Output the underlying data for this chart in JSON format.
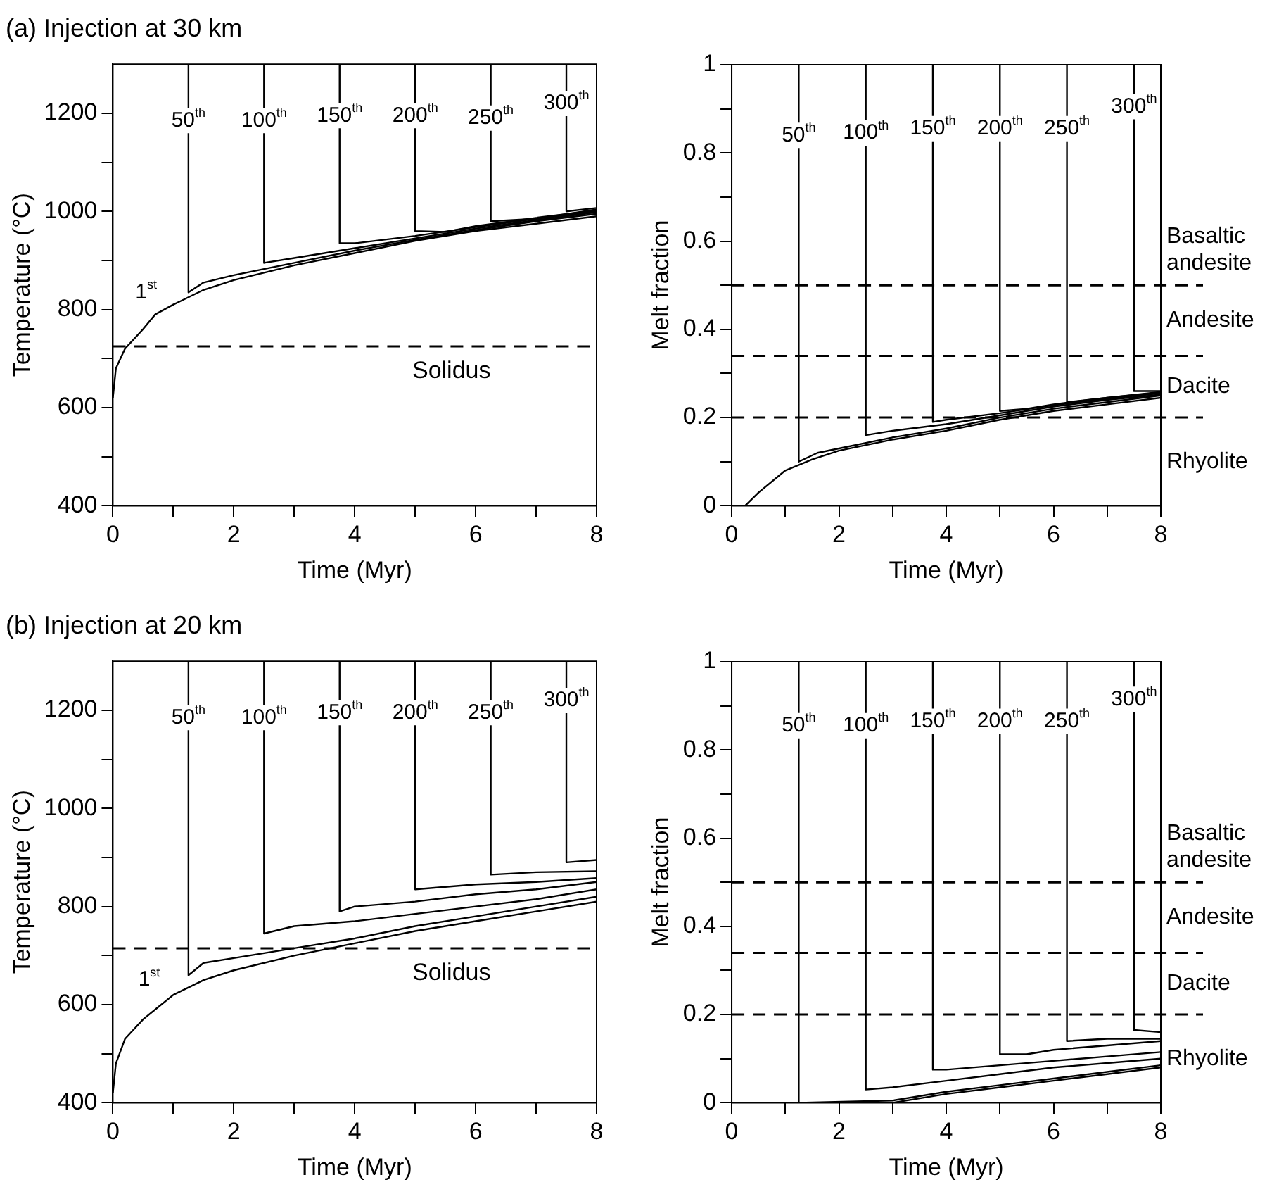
{
  "chart_data": [
    {
      "type": "line",
      "title": "(a) Injection at 30 km",
      "xlabel": "Time (Myr)",
      "ylabel": "Temperature (°C)",
      "xlim": [
        0,
        8
      ],
      "ylim": [
        400,
        1300
      ],
      "xticks": [
        0,
        {
          "value": 1,
          "label": null
        },
        2,
        {
          "value": 3,
          "label": null
        },
        4,
        {
          "value": 5,
          "label": null
        },
        6,
        {
          "value": 7,
          "label": null
        },
        8
      ],
      "yticks": [
        400,
        {
          "value": 500,
          "label": null
        },
        600,
        {
          "value": 700,
          "label": null
        },
        800,
        {
          "value": 900,
          "label": null
        },
        1000,
        {
          "value": 1100,
          "label": null
        },
        1200
      ],
      "marker": "none",
      "series": [
        {
          "color": "#000000",
          "x": [
            0,
            0.05,
            0.2,
            0.5,
            0.7,
            1,
            1.5,
            2,
            3,
            4,
            5,
            6,
            7,
            8
          ],
          "values": [
            620,
            680,
            720,
            760,
            790,
            810,
            840,
            860,
            890,
            915,
            940,
            960,
            975,
            990
          ]
        },
        {
          "color": "#000000",
          "x": [
            1.25,
            1.25,
            1.5,
            2,
            3,
            4,
            5,
            6,
            7,
            8
          ],
          "values": [
            1300,
            835,
            855,
            870,
            895,
            920,
            942,
            962,
            980,
            995
          ]
        },
        {
          "color": "#000000",
          "x": [
            2.5,
            2.5,
            3,
            4,
            5,
            6,
            7,
            8
          ],
          "values": [
            1300,
            895,
            905,
            925,
            945,
            965,
            982,
            998
          ]
        },
        {
          "color": "#000000",
          "x": [
            3.75,
            3.75,
            4,
            5,
            6,
            7,
            8
          ],
          "values": [
            1300,
            935,
            935,
            950,
            968,
            985,
            1000
          ]
        },
        {
          "color": "#000000",
          "x": [
            5,
            5,
            5.5,
            6,
            7,
            8
          ],
          "values": [
            1300,
            960,
            958,
            970,
            987,
            1002
          ]
        },
        {
          "color": "#000000",
          "x": [
            6.25,
            6.25,
            7,
            8
          ],
          "values": [
            1300,
            980,
            985,
            1004
          ]
        },
        {
          "color": "#000000",
          "x": [
            7.5,
            7.5,
            8
          ],
          "values": [
            1300,
            1000,
            1007
          ]
        }
      ],
      "ref_lines": [
        {
          "axis": "y",
          "value": 725,
          "label": "Solidus",
          "line_style": "dashed",
          "color": "#000000"
        }
      ],
      "annotations": [
        {
          "text": "1$^{st}$",
          "x": 0.55,
          "y": 835
        },
        {
          "text": "50$^{th}$",
          "x": 1.25,
          "y": 1185
        },
        {
          "text": "100$^{th}$",
          "x": 2.5,
          "y": 1185
        },
        {
          "text": "150$^{th}$",
          "x": 3.75,
          "y": 1195
        },
        {
          "text": "200$^{th}$",
          "x": 5,
          "y": 1195
        },
        {
          "text": "250$^{th}$",
          "x": 6.25,
          "y": 1190
        },
        {
          "text": "300$^{th}$",
          "x": 7.5,
          "y": 1220
        }
      ]
    },
    {
      "type": "line",
      "xlabel": "Time (Myr)",
      "ylabel": "Melt fraction",
      "xlim": [
        0,
        8
      ],
      "ylim": [
        0,
        1
      ],
      "xticks": [
        0,
        {
          "value": 1,
          "label": null
        },
        2,
        {
          "value": 3,
          "label": null
        },
        4,
        {
          "value": 5,
          "label": null
        },
        6,
        {
          "value": 7,
          "label": null
        },
        8
      ],
      "yticks": [
        0,
        {
          "value": 0.1,
          "label": null
        },
        0.2,
        {
          "value": 0.3,
          "label": null
        },
        0.4,
        {
          "value": 0.5,
          "label": null
        },
        0.6,
        {
          "value": 0.7,
          "label": null
        },
        0.8,
        {
          "value": 0.9,
          "label": null
        },
        1
      ],
      "marker": "none",
      "series": [
        {
          "color": "#000000",
          "x": [
            0.25,
            0.5,
            1,
            1.5,
            2,
            3,
            4,
            5,
            6,
            7,
            8
          ],
          "values": [
            0,
            0.03,
            0.08,
            0.105,
            0.125,
            0.15,
            0.17,
            0.195,
            0.215,
            0.23,
            0.245
          ]
        },
        {
          "color": "#000000",
          "x": [
            1.25,
            1.25,
            1.6,
            2,
            3,
            4,
            5,
            6,
            7,
            8
          ],
          "values": [
            1,
            0.1,
            0.12,
            0.13,
            0.155,
            0.175,
            0.2,
            0.22,
            0.235,
            0.25
          ]
        },
        {
          "color": "#000000",
          "x": [
            2.5,
            2.5,
            3,
            4,
            5,
            6,
            7,
            8
          ],
          "values": [
            1,
            0.16,
            0.17,
            0.185,
            0.205,
            0.225,
            0.24,
            0.252
          ]
        },
        {
          "color": "#000000",
          "x": [
            3.75,
            3.75,
            4,
            5,
            6,
            7,
            8
          ],
          "values": [
            1,
            0.19,
            0.195,
            0.21,
            0.228,
            0.243,
            0.255
          ]
        },
        {
          "color": "#000000",
          "x": [
            5,
            5,
            5.5,
            6,
            7,
            8
          ],
          "values": [
            1,
            0.215,
            0.22,
            0.23,
            0.245,
            0.257
          ]
        },
        {
          "color": "#000000",
          "x": [
            6.25,
            6.25,
            7,
            8
          ],
          "values": [
            1,
            0.235,
            0.245,
            0.258
          ]
        },
        {
          "color": "#000000",
          "x": [
            7.5,
            7.5,
            8
          ],
          "values": [
            1,
            0.26,
            0.26
          ]
        }
      ],
      "ref_lines": [
        {
          "axis": "y",
          "value": 0.5,
          "label": "Basaltic andesite",
          "line_style": "dashed",
          "color": "#000000"
        },
        {
          "axis": "y",
          "value": 0.34,
          "label": "Andesite",
          "line_style": "dashed",
          "color": "#000000"
        },
        {
          "axis": "y",
          "value": 0.2,
          "label": "Dacite",
          "line_style": "dashed",
          "color": "#000000"
        }
      ],
      "annotations": [
        "Rhyolite",
        {
          "text": "50$^{th}$",
          "x": 1.25,
          "y": 0.84
        },
        {
          "text": "100$^{th}$",
          "x": 2.5,
          "y": 0.845
        },
        {
          "text": "150$^{th}$",
          "x": 3.75,
          "y": 0.855
        },
        {
          "text": "200$^{th}$",
          "x": 5,
          "y": 0.855
        },
        {
          "text": "250$^{th}$",
          "x": 6.25,
          "y": 0.855
        },
        {
          "text": "300$^{th}$",
          "x": 7.5,
          "y": 0.905
        }
      ]
    },
    {
      "type": "line",
      "title": "(b) Injection at 20 km",
      "xlabel": "Time (Myr)",
      "ylabel": "Temperature (°C)",
      "xlim": [
        0,
        8
      ],
      "ylim": [
        400,
        1300
      ],
      "xticks": [
        0,
        {
          "value": 1,
          "label": null
        },
        2,
        {
          "value": 3,
          "label": null
        },
        4,
        {
          "value": 5,
          "label": null
        },
        6,
        {
          "value": 7,
          "label": null
        },
        8
      ],
      "yticks": [
        400,
        {
          "value": 500,
          "label": null
        },
        600,
        {
          "value": 700,
          "label": null
        },
        800,
        {
          "value": 900,
          "label": null
        },
        1000,
        {
          "value": 1100,
          "label": null
        },
        1200
      ],
      "marker": "none",
      "series": [
        {
          "color": "#000000",
          "x": [
            0,
            0.05,
            0.2,
            0.5,
            0.75,
            1,
            1.5,
            2,
            3,
            4,
            5,
            6,
            7,
            8
          ],
          "values": [
            420,
            480,
            530,
            570,
            595,
            620,
            650,
            670,
            700,
            725,
            750,
            770,
            790,
            810
          ]
        },
        {
          "color": "#000000",
          "x": [
            1.25,
            1.25,
            1.5,
            2,
            3,
            4,
            5,
            6,
            7,
            8
          ],
          "values": [
            1300,
            660,
            685,
            695,
            715,
            735,
            760,
            780,
            800,
            820
          ]
        },
        {
          "color": "#000000",
          "x": [
            2.5,
            2.5,
            3,
            4,
            5,
            6,
            7,
            8
          ],
          "values": [
            1300,
            745,
            760,
            770,
            785,
            800,
            815,
            835
          ]
        },
        {
          "color": "#000000",
          "x": [
            3.75,
            3.75,
            4,
            5,
            6,
            7,
            8
          ],
          "values": [
            1300,
            790,
            800,
            810,
            825,
            835,
            850
          ]
        },
        {
          "color": "#000000",
          "x": [
            5,
            5,
            5.5,
            6,
            7,
            8
          ],
          "values": [
            1300,
            835,
            840,
            845,
            850,
            858
          ]
        },
        {
          "color": "#000000",
          "x": [
            6.25,
            6.25,
            7,
            8
          ],
          "values": [
            1300,
            865,
            870,
            872
          ]
        },
        {
          "color": "#000000",
          "x": [
            7.5,
            7.5,
            8
          ],
          "values": [
            1300,
            890,
            895
          ]
        }
      ],
      "ref_lines": [
        {
          "axis": "y",
          "value": 715,
          "label": "Solidus",
          "line_style": "dashed",
          "color": "#000000"
        }
      ],
      "annotations": [
        {
          "text": "1$^{st}$",
          "x": 0.6,
          "y": 650
        },
        {
          "text": "50$^{th}$",
          "x": 1.25,
          "y": 1185
        },
        {
          "text": "100$^{th}$",
          "x": 2.5,
          "y": 1185
        },
        {
          "text": "150$^{th}$",
          "x": 3.75,
          "y": 1195
        },
        {
          "text": "200$^{th}$",
          "x": 5,
          "y": 1195
        },
        {
          "text": "250$^{th}$",
          "x": 6.25,
          "y": 1195
        },
        {
          "text": "300$^{th}$",
          "x": 7.5,
          "y": 1220
        }
      ]
    },
    {
      "type": "line",
      "xlabel": "Time (Myr)",
      "ylabel": "Melt fraction",
      "xlim": [
        0,
        8
      ],
      "ylim": [
        0,
        1
      ],
      "xticks": [
        0,
        {
          "value": 1,
          "label": null
        },
        2,
        {
          "value": 3,
          "label": null
        },
        4,
        {
          "value": 5,
          "label": null
        },
        6,
        {
          "value": 7,
          "label": null
        },
        8
      ],
      "yticks": [
        0,
        {
          "value": 0.1,
          "label": null
        },
        0.2,
        {
          "value": 0.3,
          "label": null
        },
        0.4,
        {
          "value": 0.5,
          "label": null
        },
        0.6,
        {
          "value": 0.7,
          "label": null
        },
        0.8,
        {
          "value": 0.9,
          "label": null
        },
        1
      ],
      "marker": "none",
      "series": [
        {
          "color": "#000000",
          "x": [
            0,
            3,
            4,
            5,
            6,
            7,
            8
          ],
          "values": [
            0,
            0,
            0.02,
            0.035,
            0.05,
            0.065,
            0.08
          ]
        },
        {
          "color": "#000000",
          "x": [
            1.25,
            1.25,
            3,
            4,
            5,
            6,
            7,
            8
          ],
          "values": [
            1,
            0,
            0.005,
            0.025,
            0.04,
            0.055,
            0.07,
            0.085
          ]
        },
        {
          "color": "#000000",
          "x": [
            2.5,
            2.5,
            3,
            4,
            5,
            6,
            7,
            8
          ],
          "values": [
            1,
            0.03,
            0.035,
            0.05,
            0.065,
            0.08,
            0.09,
            0.1
          ]
        },
        {
          "color": "#000000",
          "x": [
            3.75,
            3.75,
            4,
            5,
            6,
            7,
            8
          ],
          "values": [
            1,
            0.075,
            0.075,
            0.085,
            0.095,
            0.105,
            0.115
          ]
        },
        {
          "color": "#000000",
          "x": [
            5,
            5,
            5.5,
            6,
            7,
            8
          ],
          "values": [
            1,
            0.11,
            0.11,
            0.12,
            0.13,
            0.14
          ]
        },
        {
          "color": "#000000",
          "x": [
            6.25,
            6.25,
            7,
            8
          ],
          "values": [
            1,
            0.14,
            0.145,
            0.145
          ]
        },
        {
          "color": "#000000",
          "x": [
            7.5,
            7.5,
            8
          ],
          "values": [
            1,
            0.165,
            0.16
          ]
        }
      ],
      "ref_lines": [
        {
          "axis": "y",
          "value": 0.5,
          "label": "Basaltic andesite",
          "line_style": "dashed",
          "color": "#000000"
        },
        {
          "axis": "y",
          "value": 0.34,
          "label": "Andesite",
          "line_style": "dashed",
          "color": "#000000"
        },
        {
          "axis": "y",
          "value": 0.2,
          "label": "Dacite",
          "line_style": "dashed",
          "color": "#000000"
        }
      ],
      "annotations": [
        "Rhyolite",
        {
          "text": "50$^{th}$",
          "x": 1.25,
          "y": 0.855
        },
        {
          "text": "100$^{th}$",
          "x": 2.5,
          "y": 0.855
        },
        {
          "text": "150$^{th}$",
          "x": 3.75,
          "y": 0.865
        },
        {
          "text": "200$^{th}$",
          "x": 5,
          "y": 0.865
        },
        {
          "text": "250$^{th}$",
          "x": 6.25,
          "y": 0.865
        },
        {
          "text": "300$^{th}$",
          "x": 7.5,
          "y": 0.915
        }
      ]
    }
  ]
}
